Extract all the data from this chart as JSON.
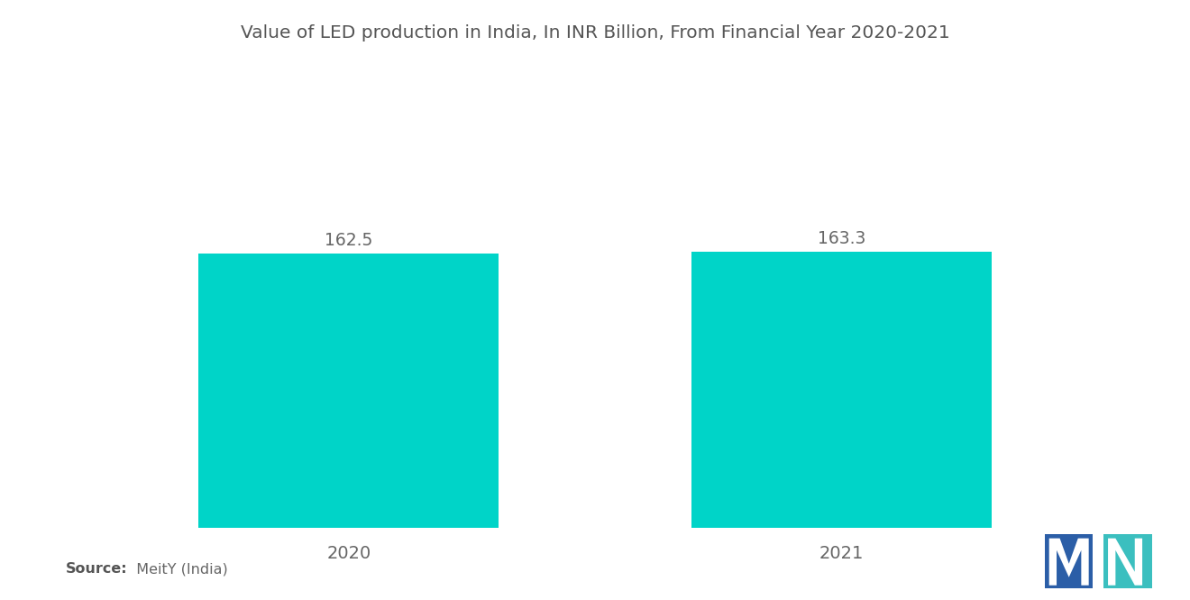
{
  "title": "Value of LED production in India, In INR Billion, From Financial Year 2020-2021",
  "categories": [
    "2020",
    "2021"
  ],
  "values": [
    162.5,
    163.3
  ],
  "bar_color": "#00D4C8",
  "background_color": "#FFFFFF",
  "title_fontsize": 14.5,
  "label_fontsize": 14,
  "value_fontsize": 13.5,
  "source_bold": "Source:",
  "source_rest": "  MeitY (India)",
  "ylim": [
    0,
    220
  ],
  "bar_width": 0.28,
  "x_positions": [
    0.27,
    0.73
  ],
  "xlim": [
    0.0,
    1.0
  ]
}
